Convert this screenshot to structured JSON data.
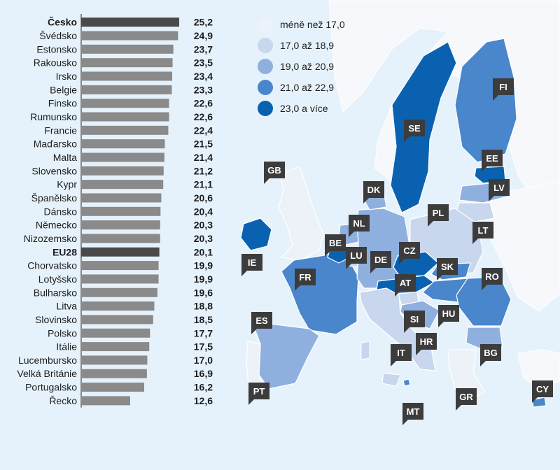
{
  "chart_data": {
    "type": "bar",
    "orientation": "horizontal",
    "title": "",
    "xlabel": "",
    "ylabel": "",
    "xlim": [
      0,
      25.2
    ],
    "grid": false,
    "categories": [
      "Česko",
      "Švédsko",
      "Estonsko",
      "Rakousko",
      "Irsko",
      "Belgie",
      "Finsko",
      "Rumunsko",
      "Francie",
      "Maďarsko",
      "Malta",
      "Slovensko",
      "Kypr",
      "Španělsko",
      "Dánsko",
      "Německo",
      "Nizozemsko",
      "EU28",
      "Chorvatsko",
      "Lotyšsko",
      "Bulharsko",
      "Litva",
      "Slovinsko",
      "Polsko",
      "Itálie",
      "Lucembursko",
      "Velká Británie",
      "Portugalsko",
      "Řecko"
    ],
    "values": [
      25.2,
      24.9,
      23.7,
      23.5,
      23.4,
      23.3,
      22.6,
      22.6,
      22.4,
      21.5,
      21.4,
      21.2,
      21.1,
      20.6,
      20.4,
      20.3,
      20.3,
      20.1,
      19.9,
      19.9,
      19.6,
      18.8,
      18.5,
      17.7,
      17.5,
      17.0,
      16.9,
      16.2,
      12.6
    ],
    "value_labels": [
      "25,2",
      "24,9",
      "23,7",
      "23,5",
      "23,4",
      "23,3",
      "22,6",
      "22,6",
      "22,4",
      "21,5",
      "21,4",
      "21,2",
      "21,1",
      "20,6",
      "20,4",
      "20,3",
      "20,3",
      "20,1",
      "19,9",
      "19,9",
      "19,6",
      "18,8",
      "18,5",
      "17,7",
      "17,5",
      "17,0",
      "16,9",
      "16,2",
      "12,6"
    ],
    "highlighted": [
      "Česko",
      "EU28"
    ],
    "colors": {
      "bar": "#8a8a8a",
      "highlight": "#4a4a4a"
    }
  },
  "legend": {
    "placement": "top-center",
    "items": [
      {
        "label": "méně než 17,0",
        "color": "#edf1f8"
      },
      {
        "label": "17,0 až 18,9",
        "color": "#c8d6ee"
      },
      {
        "label": "19,0 až 20,9",
        "color": "#8fb0de"
      },
      {
        "label": "21,0 až 22,9",
        "color": "#4a86cc"
      },
      {
        "label": "23,0 a více",
        "color": "#0a61b0"
      }
    ]
  },
  "map": {
    "background": "#e6f2fb",
    "land_color": "#f6f8fb",
    "tag_color": "#3c3c3c",
    "countries": [
      {
        "code": "GB",
        "color": "#edf1f8"
      },
      {
        "code": "IE",
        "color": "#0a61b0"
      },
      {
        "code": "FR",
        "color": "#4a86cc"
      },
      {
        "code": "ES",
        "color": "#8fb0de"
      },
      {
        "code": "PT",
        "color": "#edf1f8"
      },
      {
        "code": "BE",
        "color": "#0a61b0"
      },
      {
        "code": "NL",
        "color": "#8fb0de"
      },
      {
        "code": "LU",
        "color": "#c8d6ee"
      },
      {
        "code": "DE",
        "color": "#8fb0de"
      },
      {
        "code": "DK",
        "color": "#8fb0de"
      },
      {
        "code": "SE",
        "color": "#0a61b0"
      },
      {
        "code": "FI",
        "color": "#4a86cc"
      },
      {
        "code": "EE",
        "color": "#0a61b0"
      },
      {
        "code": "LV",
        "color": "#8fb0de"
      },
      {
        "code": "LT",
        "color": "#c8d6ee"
      },
      {
        "code": "PL",
        "color": "#c8d6ee"
      },
      {
        "code": "CZ",
        "color": "#0a61b0"
      },
      {
        "code": "SK",
        "color": "#4a86cc"
      },
      {
        "code": "AT",
        "color": "#0a61b0"
      },
      {
        "code": "HU",
        "color": "#4a86cc"
      },
      {
        "code": "SI",
        "color": "#c8d6ee"
      },
      {
        "code": "HR",
        "color": "#8fb0de"
      },
      {
        "code": "IT",
        "color": "#c8d6ee"
      },
      {
        "code": "RO",
        "color": "#4a86cc"
      },
      {
        "code": "BG",
        "color": "#8fb0de"
      },
      {
        "code": "GR",
        "color": "#edf1f8"
      },
      {
        "code": "MT",
        "color": "#4a86cc"
      },
      {
        "code": "CY",
        "color": "#4a86cc"
      }
    ]
  }
}
